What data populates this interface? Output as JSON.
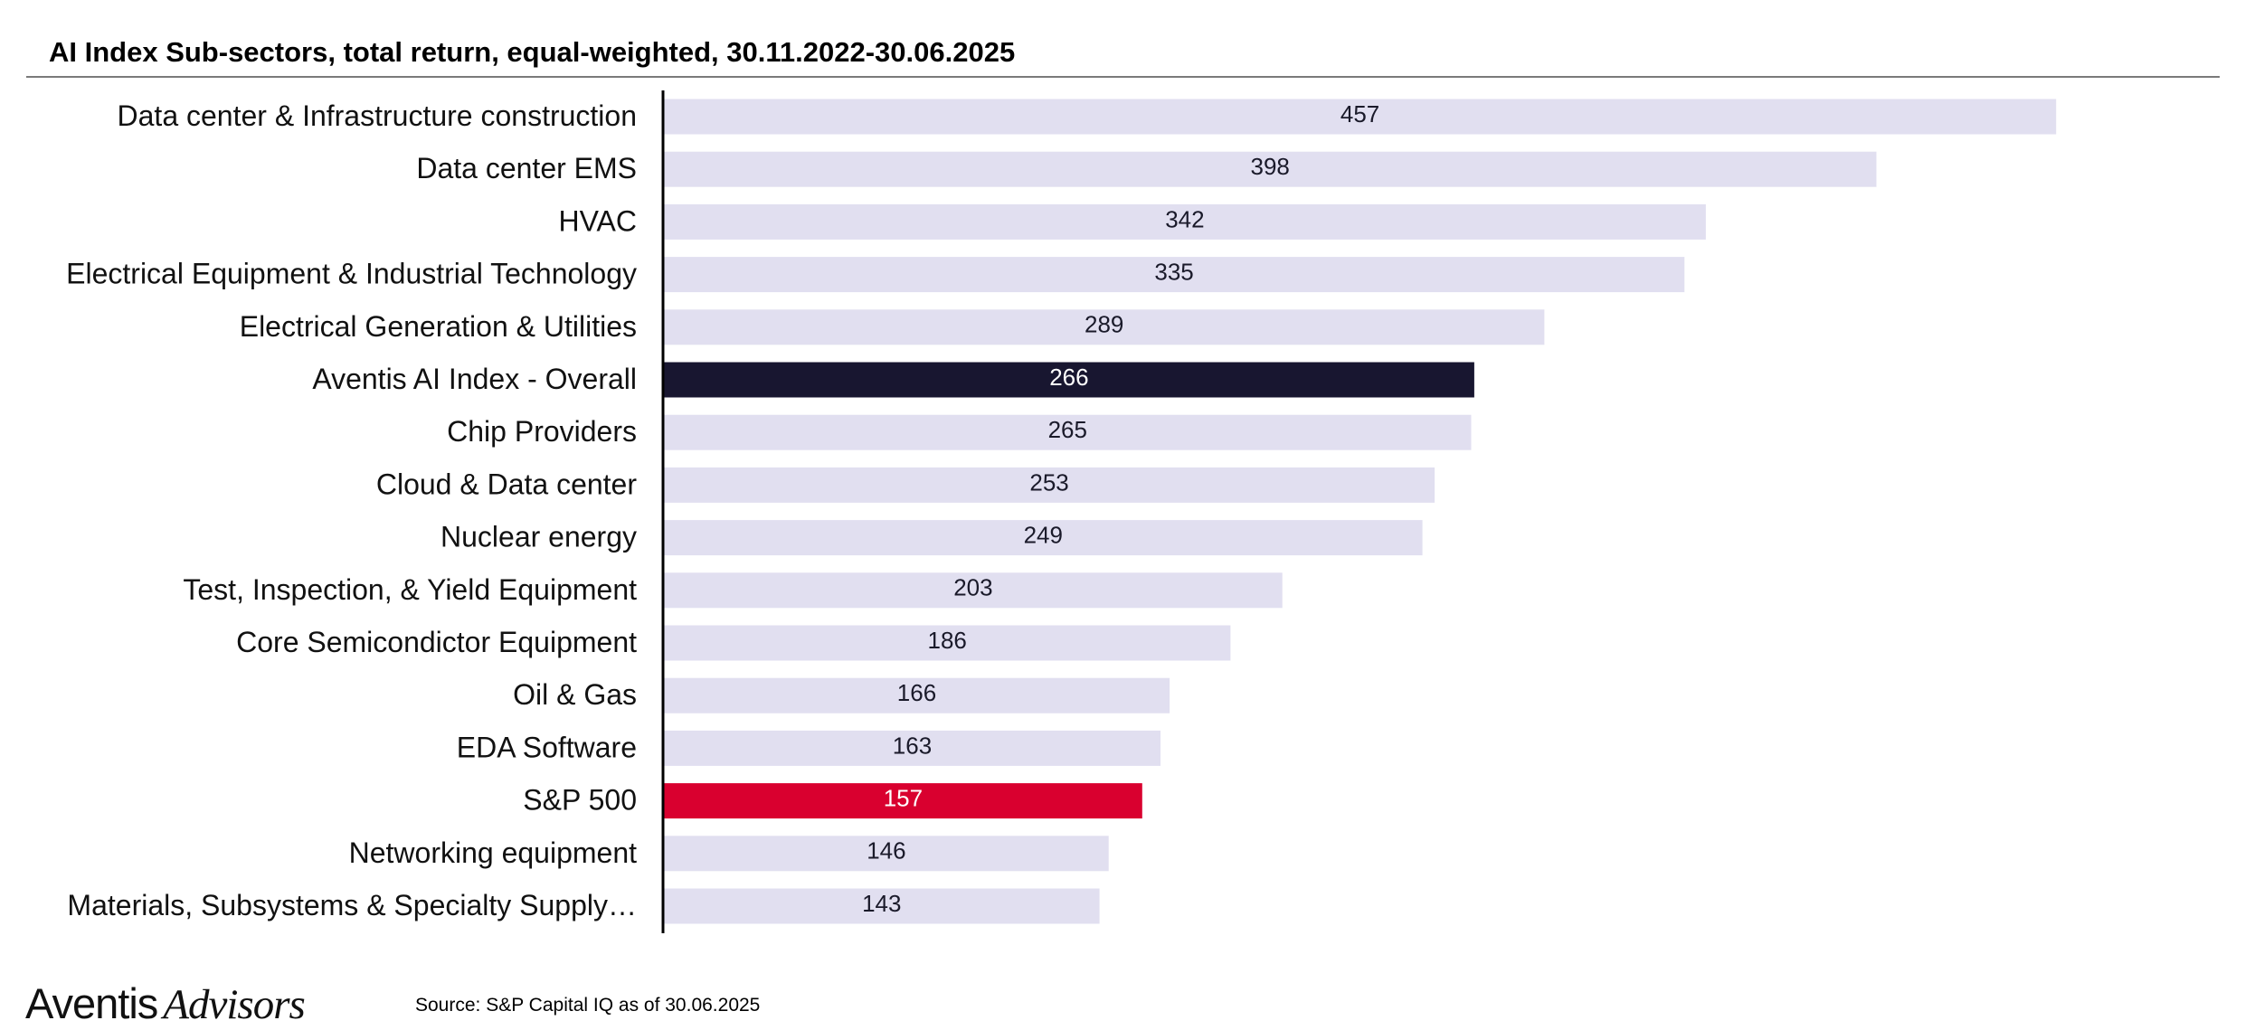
{
  "chart_data": {
    "type": "bar",
    "orientation": "horizontal",
    "title": "AI Index Sub-sectors, total return, equal-weighted, 30.11.2022-30.06.2025",
    "xlabel": "",
    "ylabel": "",
    "xlim": [
      0,
      500
    ],
    "grid": false,
    "legend": "none",
    "colors": {
      "default": "#e1dff0",
      "default_label": "#1a1a2a",
      "highlight_index": "#181630",
      "highlight_sp500": "#d9002f",
      "highlight_label": "#ffffff"
    },
    "bars": [
      {
        "category": "Data center & Infrastructure construction",
        "value": 457,
        "label": "457",
        "highlight": ""
      },
      {
        "category": "Data center EMS",
        "value": 398,
        "label": "398",
        "highlight": ""
      },
      {
        "category": "HVAC",
        "value": 342,
        "label": "342",
        "highlight": ""
      },
      {
        "category": "Electrical Equipment & Industrial Technology",
        "value": 335,
        "label": "335",
        "highlight": ""
      },
      {
        "category": "Electrical Generation & Utilities",
        "value": 289,
        "label": "289",
        "highlight": ""
      },
      {
        "category": "Aventis AI Index - Overall",
        "value": 266,
        "label": "266",
        "highlight": "index"
      },
      {
        "category": "Chip Providers",
        "value": 265,
        "label": "265",
        "highlight": ""
      },
      {
        "category": "Cloud & Data center",
        "value": 253,
        "label": "253",
        "highlight": ""
      },
      {
        "category": "Nuclear energy",
        "value": 249,
        "label": "249",
        "highlight": ""
      },
      {
        "category": "Test, Inspection, & Yield Equipment",
        "value": 203,
        "label": "203",
        "highlight": ""
      },
      {
        "category": "Core Semicondictor Equipment",
        "value": 186,
        "label": "186",
        "highlight": ""
      },
      {
        "category": "Oil & Gas",
        "value": 166,
        "label": "166",
        "highlight": ""
      },
      {
        "category": "EDA Software",
        "value": 163,
        "label": "163",
        "highlight": ""
      },
      {
        "category": "S&P 500",
        "value": 157,
        "label": "157",
        "highlight": "sp500"
      },
      {
        "category": "Networking equipment",
        "value": 146,
        "label": "146",
        "highlight": ""
      },
      {
        "category": "Materials, Subsystems & Specialty Supply…",
        "value": 143,
        "label": "143",
        "highlight": ""
      }
    ]
  },
  "footer": {
    "logo_word_1": "Aventis",
    "logo_word_2": "Advisors",
    "source": "Source: S&P Capital IQ as of 30.06.2025"
  }
}
